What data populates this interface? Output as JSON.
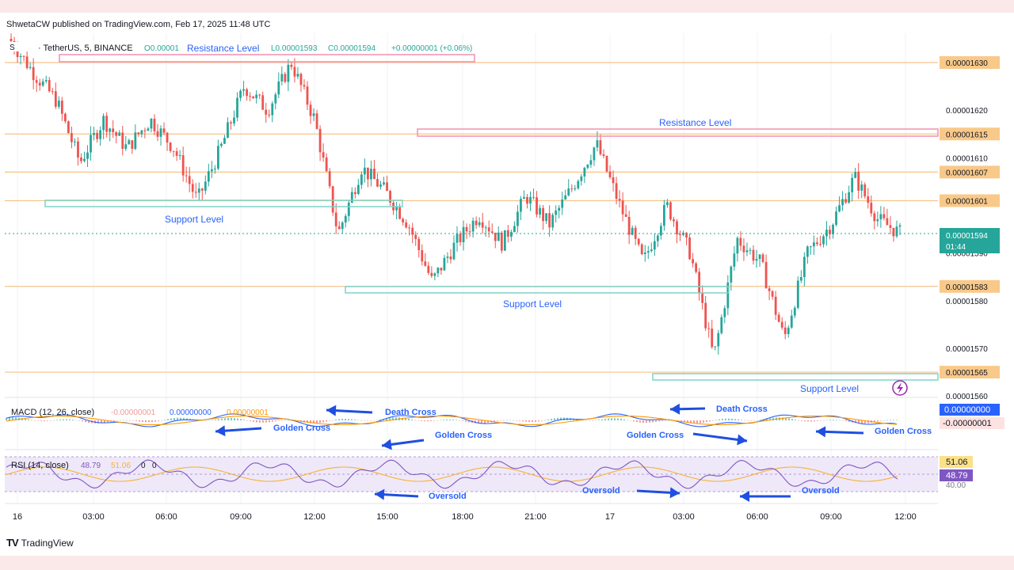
{
  "header": {
    "published": "ShwetaCW published on TradingView.com, Feb 17, 2025 11:48 UTC",
    "symbol": "· TetherUS, 5, BINANCE",
    "ohlc_open": "O0.00001",
    "ohlc_close": "C0.00001594",
    "ohlc_low": "L0.00001593",
    "ohlc_change": "+0.00000001 (+0.06%)"
  },
  "macd": {
    "label": "MACD (12, 26, close)",
    "v1": "-0.00000001",
    "v2": "0.00000000",
    "v3": "0.00000001",
    "badge_top": "0.00000000",
    "badge_bottom": "-0.00000001"
  },
  "rsi": {
    "label": "RSI (14, close)",
    "v1": "48.79",
    "v2": "51.06",
    "v3": "0",
    "v4": "0",
    "badge_top": "51.06",
    "badge_bottom": "48.79",
    "level_text": "40.00"
  },
  "price_badge": {
    "price": "0.00001594",
    "countdown": "01:44"
  },
  "annotations": {
    "resistance_level": "Resistance Level",
    "support_level": "Support Level",
    "golden_cross": "Golden Cross",
    "death_cross": "Death Cross",
    "oversold": "Oversold"
  },
  "footer": {
    "brand": "TradingView"
  },
  "colors": {
    "up": "#26a69a",
    "down": "#ef5350",
    "support_box": "#7dd3c8",
    "resistance_box": "#f48fb1",
    "level_line": "#f7c48a",
    "level_badge": "#f9c98a",
    "annotation_text": "#2962ff",
    "macd_line": "#2962ff",
    "signal_line": "#ff9800",
    "rsi_line": "#7e57c2",
    "rsi_ma": "#f5b335",
    "arrow": "#1e4fe0"
  },
  "chart_data": {
    "type": "candlestick",
    "symbol": "TetherUS, 5, BINANCE",
    "interval": "5",
    "x_ticks": [
      "16",
      "03:00",
      "06:00",
      "09:00",
      "12:00",
      "15:00",
      "18:00",
      "21:00",
      "17",
      "03:00",
      "06:00",
      "09:00",
      "12:00"
    ],
    "y_ticks": [
      "0.00001630",
      "0.00001620",
      "0.00001615",
      "0.00001610",
      "0.00001607",
      "0.00001601",
      "0.00001590",
      "0.00001583",
      "0.00001580",
      "0.00001570",
      "0.00001565",
      "0.00001560"
    ],
    "ylim": [
      1.56e-05,
      1.63e-05
    ],
    "horizontal_levels": [
      1.63e-05,
      1.615e-05,
      1.607e-05,
      1.601e-05,
      1.583e-05,
      1.565e-05
    ],
    "last_price": 1.594e-05,
    "price_path": [
      {
        "t": "00:00",
        "p": 1.635e-05
      },
      {
        "t": "01:00",
        "p": 1.628e-05
      },
      {
        "t": "02:00",
        "p": 1.622e-05
      },
      {
        "t": "03:00",
        "p": 1.609e-05
      },
      {
        "t": "04:00",
        "p": 1.618e-05
      },
      {
        "t": "05:00",
        "p": 1.612e-05
      },
      {
        "t": "06:00",
        "p": 1.618e-05
      },
      {
        "t": "07:00",
        "p": 1.612e-05
      },
      {
        "t": "07:30",
        "p": 1.601e-05
      },
      {
        "t": "08:30",
        "p": 1.612e-05
      },
      {
        "t": "09:30",
        "p": 1.625e-05
      },
      {
        "t": "11:00",
        "p": 1.62e-05
      },
      {
        "t": "12:00",
        "p": 1.63e-05
      },
      {
        "t": "13:00",
        "p": 1.618e-05
      },
      {
        "t": "14:30",
        "p": 1.594e-05
      },
      {
        "t": "15:00",
        "p": 1.608e-05
      },
      {
        "t": "16:00",
        "p": 1.603e-05
      },
      {
        "t": "17:00",
        "p": 1.596e-05
      },
      {
        "t": "18:00",
        "p": 1.584e-05
      },
      {
        "t": "19:00",
        "p": 1.592e-05
      },
      {
        "t": "20:00",
        "p": 1.598e-05
      },
      {
        "t": "21:00",
        "p": 1.592e-05
      },
      {
        "t": "22:00",
        "p": 1.602e-05
      },
      {
        "t": "23:00",
        "p": 1.596e-05
      },
      {
        "t": "00:00",
        "p": 1.604e-05
      },
      {
        "t": "01:30",
        "p": 1.613e-05
      },
      {
        "t": "02:30",
        "p": 1.6e-05
      },
      {
        "t": "03:00",
        "p": 1.588e-05
      },
      {
        "t": "04:00",
        "p": 1.6e-05
      },
      {
        "t": "05:00",
        "p": 1.59e-05
      },
      {
        "t": "05:30",
        "p": 1.568e-05
      },
      {
        "t": "06:00",
        "p": 1.593e-05
      },
      {
        "t": "07:00",
        "p": 1.588e-05
      },
      {
        "t": "08:00",
        "p": 1.572e-05
      },
      {
        "t": "09:00",
        "p": 1.59e-05
      },
      {
        "t": "10:00",
        "p": 1.596e-05
      },
      {
        "t": "10:30",
        "p": 1.606e-05
      },
      {
        "t": "11:00",
        "p": 1.597e-05
      },
      {
        "t": "11:45",
        "p": 1.594e-05
      }
    ]
  }
}
